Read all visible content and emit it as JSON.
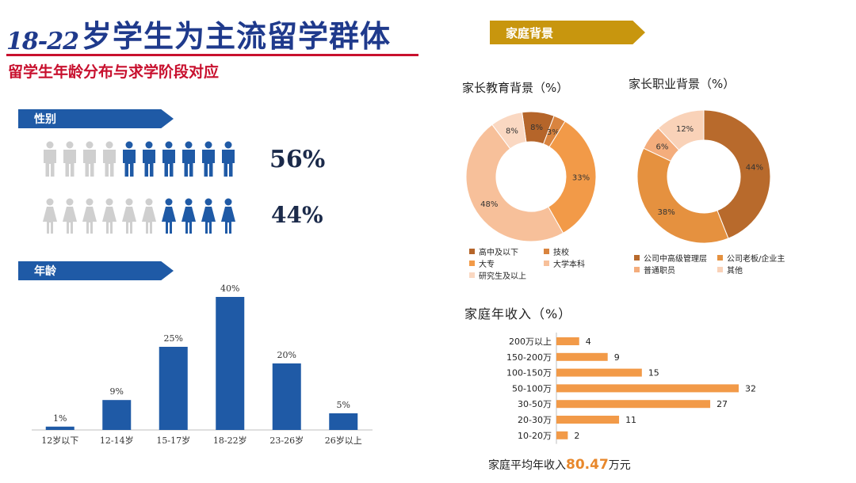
{
  "title": {
    "prefix": "18-22",
    "main": "岁学生为主流留学群体"
  },
  "subtitle": "留学生年龄分布与求学阶段对应",
  "gender": {
    "banner": "性别",
    "male": {
      "pct": "56%",
      "total_icons": 10,
      "highlighted_icons": 6
    },
    "female": {
      "pct": "44%",
      "total_icons": 10,
      "highlighted_icons": 4
    },
    "colors": {
      "highlight": "#1f5aa6",
      "muted": "#cfcfcf"
    }
  },
  "age": {
    "banner": "年龄"
  },
  "family": {
    "banner": "家庭背景"
  },
  "education_title": "家长教育背景（%）",
  "occupation_title": "家长职业背景（%）",
  "income_title": "家庭年收入（%）",
  "income_avg": {
    "prefix": "家庭平均年收入",
    "value": "80.47",
    "suffix": "万元"
  },
  "chart_data": [
    {
      "type": "bar",
      "categories": [
        "12岁以下",
        "12-14岁",
        "15-17岁",
        "18-22岁",
        "23-26岁",
        "26岁以上"
      ],
      "values": [
        1,
        9,
        25,
        40,
        20,
        5
      ],
      "data_labels": [
        "1%",
        "9%",
        "25%",
        "40%",
        "20%",
        "5%"
      ],
      "ylim": [
        0,
        40
      ],
      "color": "#1f5aa6"
    },
    {
      "type": "pie",
      "donut": true,
      "labels": [
        "高中及以下",
        "技校",
        "大专",
        "大学本科",
        "研究生及以上"
      ],
      "values": [
        8,
        3,
        33,
        48,
        8
      ],
      "data_labels": [
        "8%",
        "3%",
        "33%",
        "48%",
        "8%"
      ],
      "colors": [
        "#b5652a",
        "#d9843f",
        "#f29a48",
        "#f7c09a",
        "#fad8c2"
      ]
    },
    {
      "type": "pie",
      "donut": true,
      "labels": [
        "公司中高级管理层",
        "公司老板/企业主",
        "普通职员",
        "其他"
      ],
      "values": [
        44,
        38,
        6,
        12
      ],
      "data_labels": [
        "44%",
        "38%",
        "6%",
        "12%"
      ],
      "colors": [
        "#b86a2c",
        "#e5913f",
        "#f4ad7c",
        "#f9d2b8"
      ]
    },
    {
      "type": "bar",
      "orientation": "horizontal",
      "categories": [
        "200万以上",
        "150-200万",
        "100-150万",
        "50-100万",
        "30-50万",
        "20-30万",
        "10-20万"
      ],
      "values": [
        4,
        9,
        15,
        32,
        27,
        11,
        2
      ],
      "color": "#f29a48"
    }
  ]
}
